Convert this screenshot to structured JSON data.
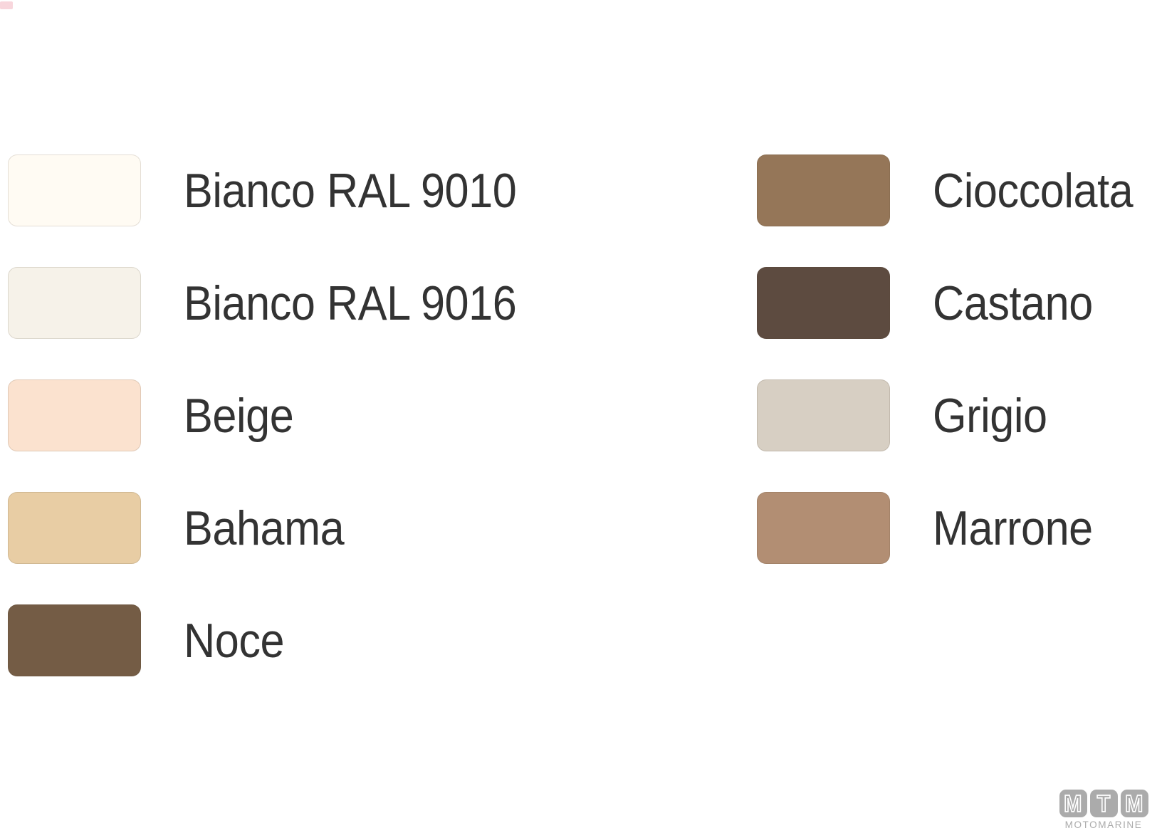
{
  "page": {
    "background": "#FFFFFF",
    "label_color": "#333333"
  },
  "corner_mark": {
    "color": "#F7CFD6"
  },
  "palette": {
    "left_column": {
      "items": [
        {
          "name": "Bianco RAL 9010",
          "hex": "#FFFBF3"
        },
        {
          "name": "Bianco RAL 9016",
          "hex": "#F6F2E9"
        },
        {
          "name": "Beige",
          "hex": "#FBE2CF"
        },
        {
          "name": "Bahama",
          "hex": "#E8CDA4"
        },
        {
          "name": "Noce",
          "hex": "#745C45"
        }
      ]
    },
    "right_column": {
      "items": [
        {
          "name": "Cioccolata",
          "hex": "#957658"
        },
        {
          "name": "Castano",
          "hex": "#5D4B40"
        },
        {
          "name": "Grigio",
          "hex": "#D7CFC3"
        },
        {
          "name": "Marrone",
          "hex": "#B28E73"
        }
      ]
    }
  },
  "logo": {
    "letters": [
      "M",
      "T",
      "M"
    ],
    "wordmark": "MOTOMARINE",
    "color": "#ABABAB"
  }
}
